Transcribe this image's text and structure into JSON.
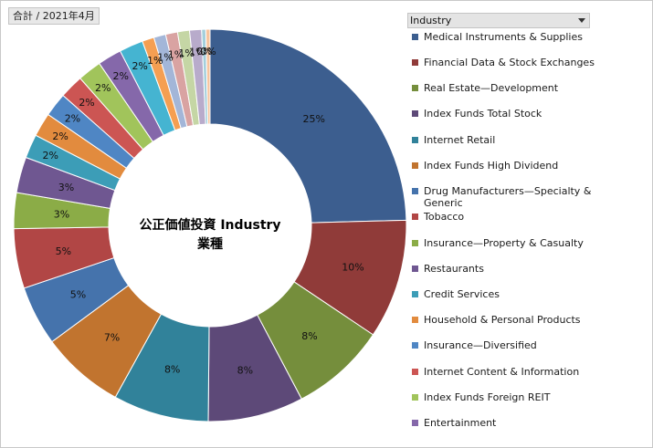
{
  "header": {
    "total_label": "合計 / 2021年4月"
  },
  "legend": {
    "dropdown_label": "Industry"
  },
  "chart_data": {
    "type": "pie",
    "donut": true,
    "center_label": "公正価値投資 Industry 業種",
    "categories": [
      "Medical Instruments & Supplies",
      "Financial Data & Stock Exchanges",
      "Real Estate—Development",
      "Index Funds Total Stock",
      "Internet Retail",
      "Index Funds High Dividend",
      "Drug Manufacturers—Specialty & Generic",
      "Tobacco",
      "Insurance—Property & Casualty",
      "Restaurants",
      "Credit Services",
      "Household & Personal Products",
      "Insurance—Diversified",
      "Internet Content & Information",
      "Index Funds Foreign REIT",
      "Entertainment",
      "",
      "",
      "",
      "",
      "",
      "",
      "",
      ""
    ],
    "values": [
      25,
      10,
      8,
      8,
      8,
      7,
      5,
      5,
      3,
      3,
      2,
      2,
      2,
      2,
      2,
      2,
      2,
      1,
      1,
      1,
      1,
      1,
      0,
      0
    ],
    "data_labels": [
      "25%",
      "10%",
      "8%",
      "8%",
      "8%",
      "7%",
      "5%",
      "5%",
      "3%",
      "3%",
      "2%",
      "2%",
      "2%",
      "2%",
      "2%",
      "2%",
      "2%",
      "1%",
      "1%",
      "1%",
      "1%",
      "1%",
      "0%",
      "0%"
    ],
    "colors": [
      "#3c5e8f",
      "#903b39",
      "#758e3c",
      "#5d4978",
      "#31829a",
      "#c1742f",
      "#4573ac",
      "#b14645",
      "#8bac47",
      "#6f5791",
      "#3c9db7",
      "#e28b3e",
      "#4f86c4",
      "#cc5553",
      "#a1c45b",
      "#8568aa",
      "#45b4d1",
      "#f59f52",
      "#a3b6d8",
      "#d9a3a2",
      "#c5d6a5",
      "#b8abcb",
      "#a3cfdc",
      "#f7c49e"
    ],
    "legend_position": "right"
  }
}
